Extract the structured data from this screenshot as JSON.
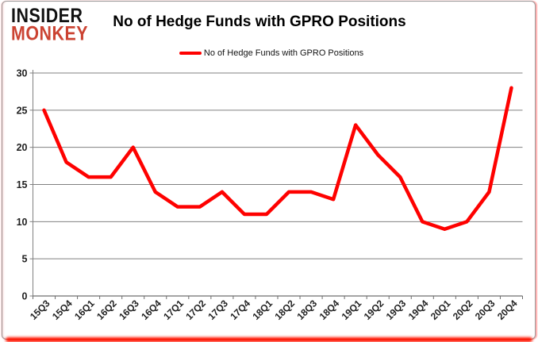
{
  "header": {
    "logo_line1": "INSIDER",
    "logo_line2": "MONKEY",
    "title": "No of Hedge Funds with GPRO Positions"
  },
  "legend": {
    "label": "No of Hedge Funds with GPRO Positions",
    "swatch_color": "#fe0100"
  },
  "chart_data": {
    "type": "line",
    "title": "No of Hedge Funds with GPRO Positions",
    "categories": [
      "15Q3",
      "15Q4",
      "16Q1",
      "16Q2",
      "16Q3",
      "16Q4",
      "17Q1",
      "17Q2",
      "17Q3",
      "17Q4",
      "18Q1",
      "18Q2",
      "18Q3",
      "18Q4",
      "19Q1",
      "19Q2",
      "19Q3",
      "19Q4",
      "20Q1",
      "20Q2",
      "20Q3",
      "20Q4"
    ],
    "series": [
      {
        "name": "No of Hedge Funds with GPRO Positions",
        "color": "#fe0100",
        "values": [
          25,
          18,
          16,
          16,
          20,
          14,
          12,
          12,
          14,
          11,
          11,
          14,
          14,
          13,
          23,
          19,
          16,
          10,
          9,
          10,
          14,
          28
        ]
      }
    ],
    "xlabel": "",
    "ylabel": "",
    "ylim": [
      0,
      30
    ],
    "yticks": [
      0,
      5,
      10,
      15,
      20,
      25,
      30
    ],
    "grid": true,
    "legend_position": "top",
    "gridline_color": "#808080",
    "axis_label_color": "#1f1f1f"
  }
}
